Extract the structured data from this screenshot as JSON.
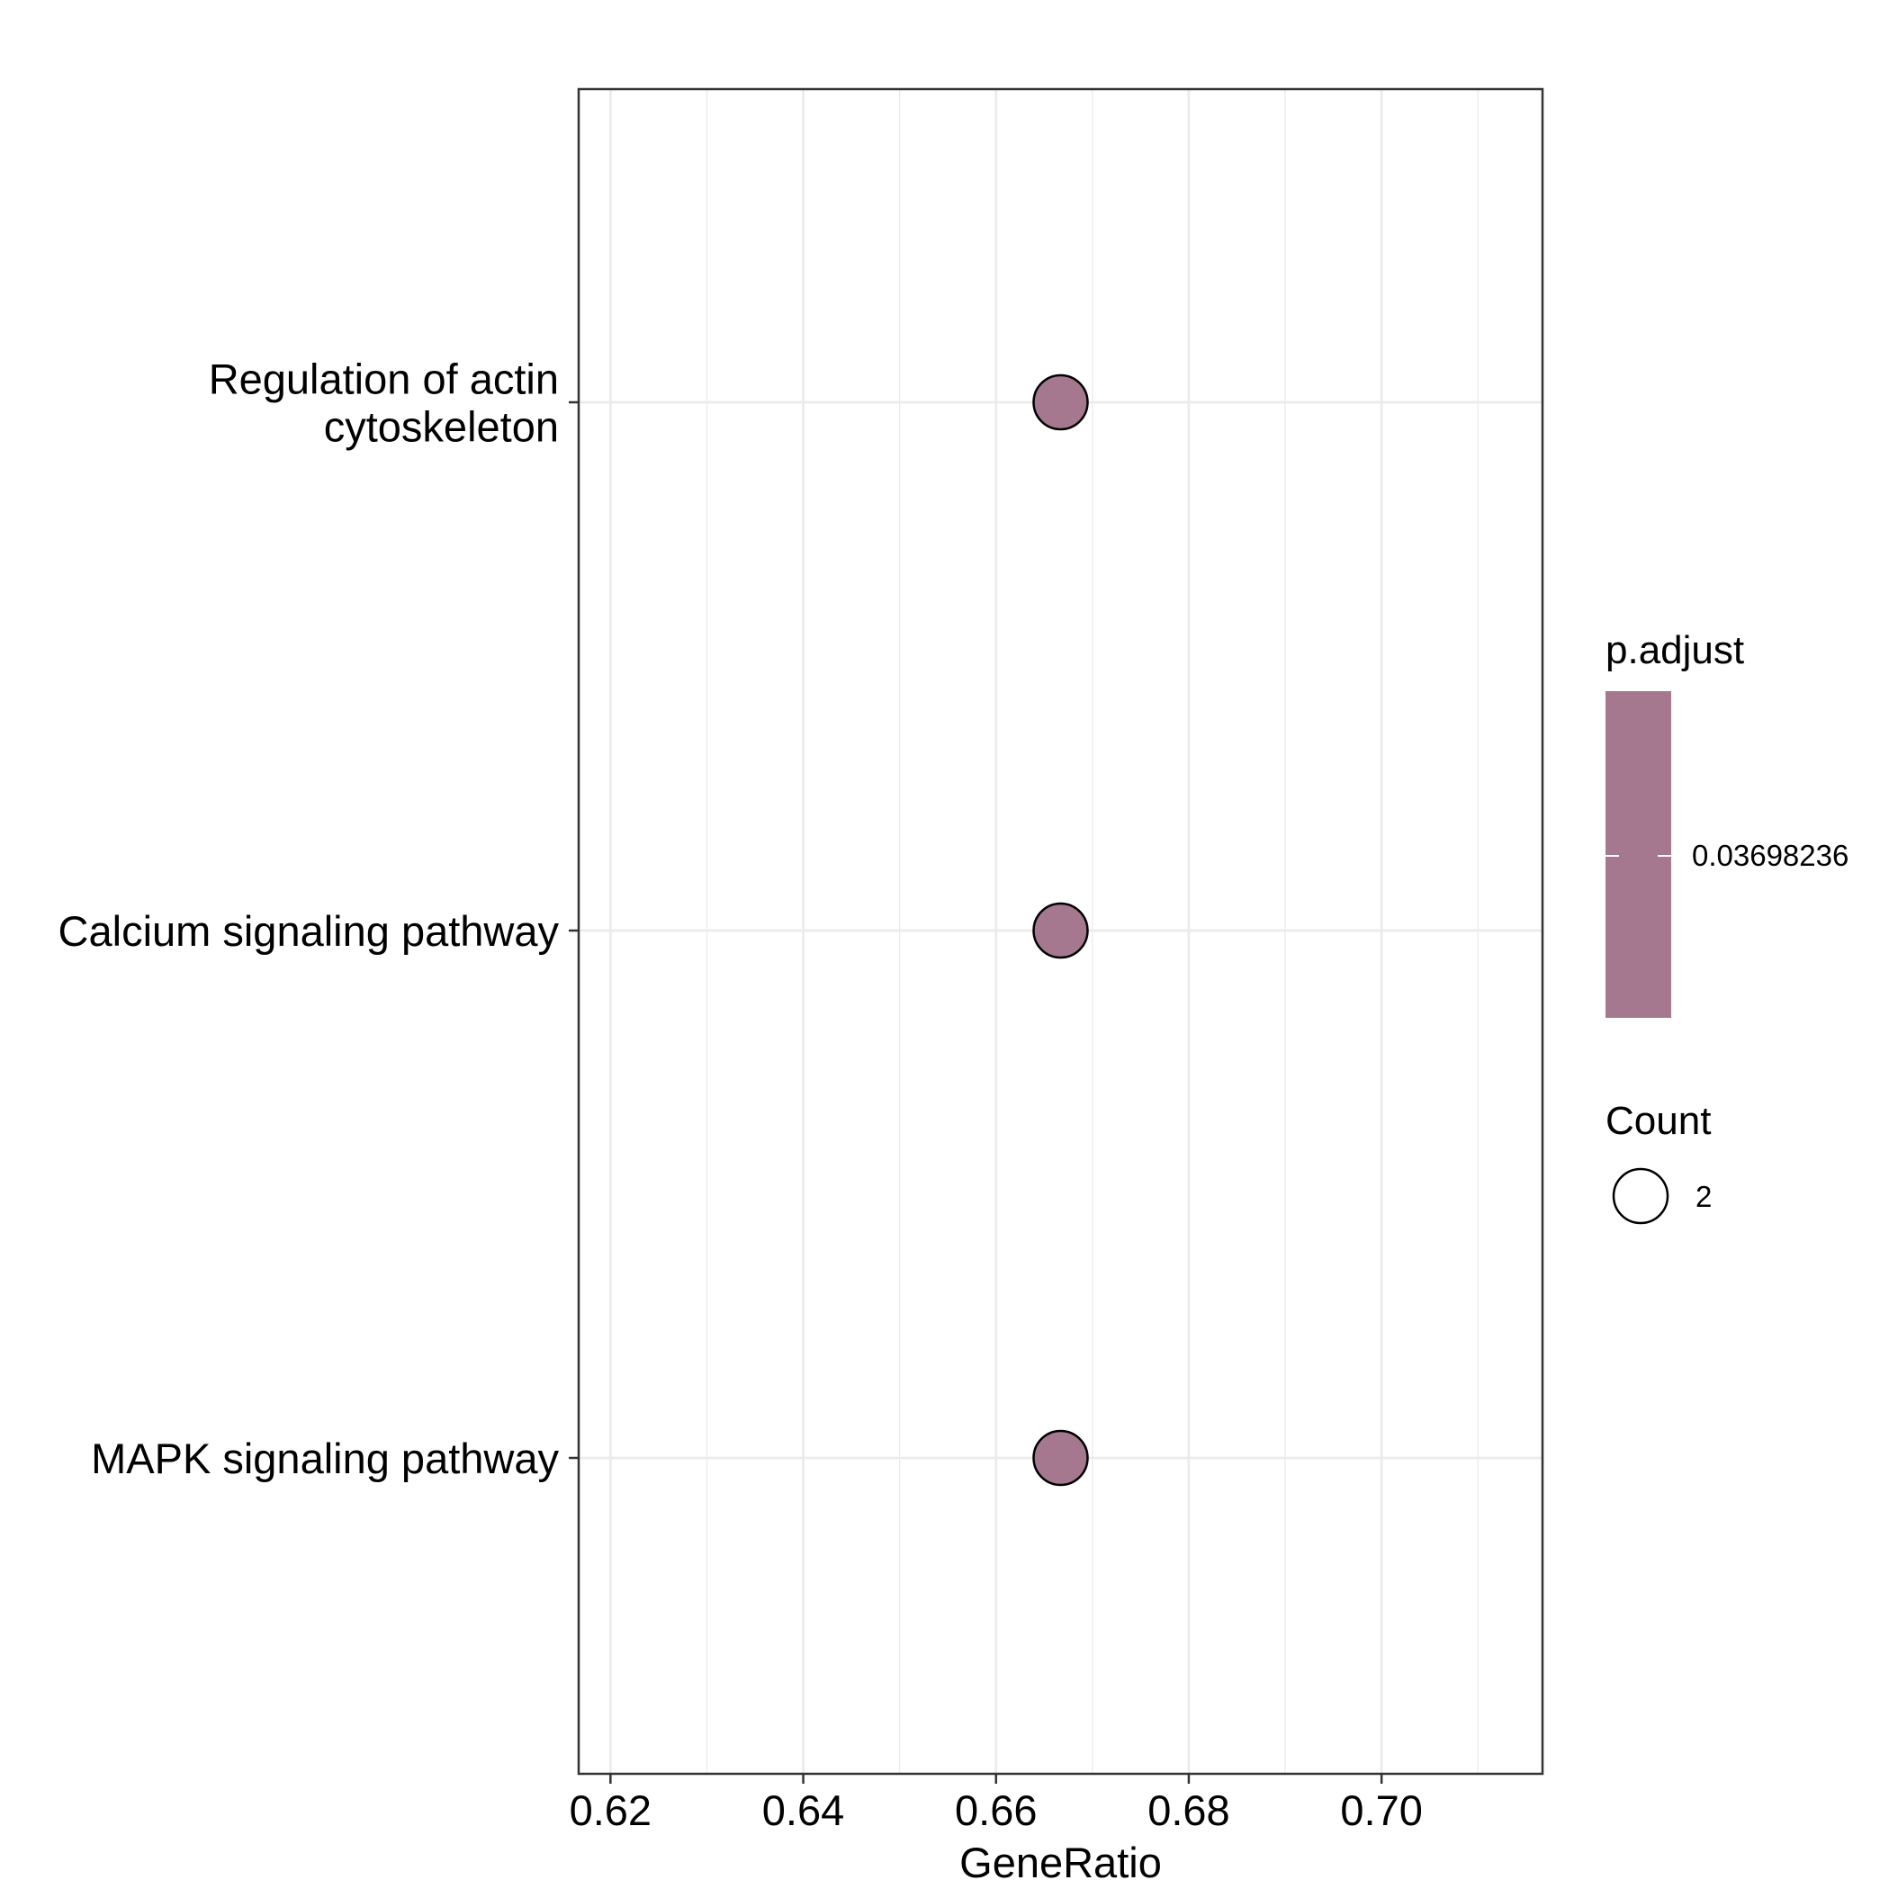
{
  "chart_data": {
    "type": "scatter",
    "title": "",
    "xlabel": "GeneRatio",
    "ylabel": "",
    "xlim": [
      0.6167,
      0.7167
    ],
    "x_ticks": [
      "0.62",
      "0.64",
      "0.66",
      "0.68",
      "0.70"
    ],
    "x_tick_values": [
      0.62,
      0.64,
      0.66,
      0.68,
      0.7
    ],
    "categories": [
      [
        "Regulation of actin",
        "cytoskeleton"
      ],
      [
        "Calcium signaling pathway"
      ],
      [
        "MAPK signaling pathway"
      ]
    ],
    "points": [
      {
        "category": 0,
        "x": 0.6667,
        "count": 2,
        "p_adjust": 0.03698236
      },
      {
        "category": 1,
        "x": 0.6667,
        "count": 2,
        "p_adjust": 0.03698236
      },
      {
        "category": 2,
        "x": 0.6667,
        "count": 2,
        "p_adjust": 0.03698236
      }
    ],
    "grid": true,
    "point_color": "#A5788F",
    "legend_position": "right",
    "legend": {
      "color": {
        "title": "p.adjust",
        "label": "0.03698236",
        "color": "#A5788F"
      },
      "size": {
        "title": "Count",
        "label": "2"
      }
    }
  }
}
